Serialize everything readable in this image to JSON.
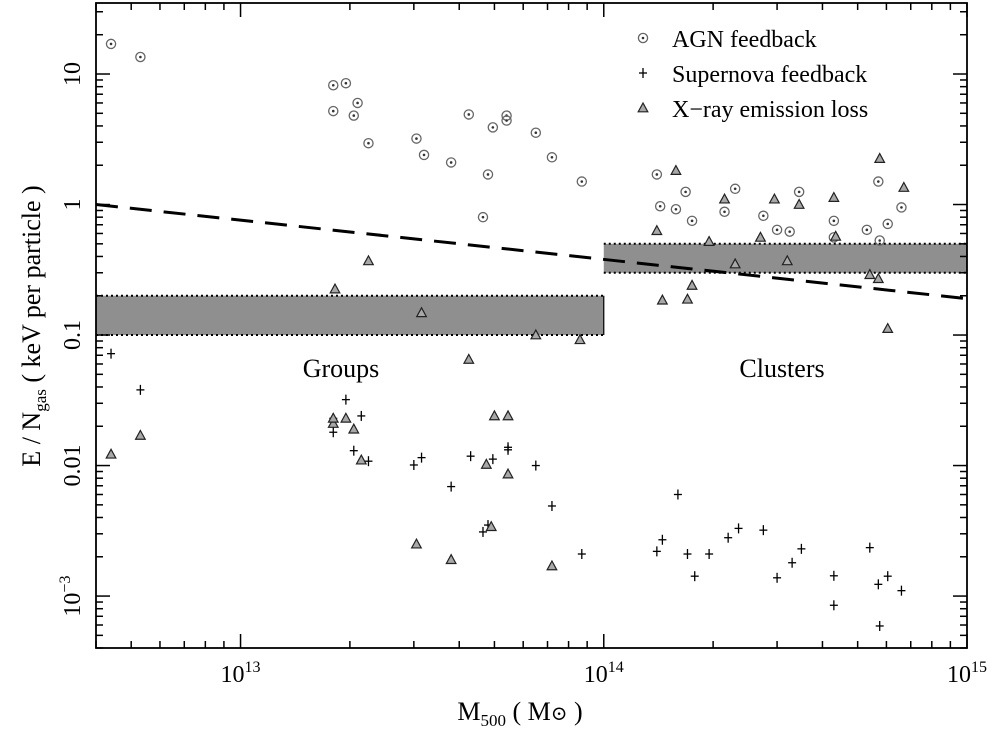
{
  "chart_data": {
    "type": "scatter",
    "x_axis": {
      "label_main": "M",
      "label_sub": "500",
      "label_unit_open": " ( M",
      "label_unit_symbol": "⊙",
      "label_unit_close": " )",
      "scale": "log",
      "range": [
        4000000000000.0,
        1000000000000000.0
      ],
      "ticks": [
        {
          "value": 10000000000000.0,
          "base": "10",
          "exp": "13"
        },
        {
          "value": 100000000000000.0,
          "base": "10",
          "exp": "14"
        },
        {
          "value": 1000000000000000.0,
          "base": "10",
          "exp": "15"
        }
      ]
    },
    "y_axis": {
      "label_main": "E / N",
      "label_sub": "gas",
      "label_unit": " ( keV per particle )",
      "scale": "log",
      "range": [
        0.0004,
        35
      ],
      "ticks": [
        {
          "value": 10,
          "text": "10"
        },
        {
          "value": 1,
          "text": "1"
        },
        {
          "value": 0.1,
          "text": "0.1"
        },
        {
          "value": 0.01,
          "text": "0.01"
        },
        {
          "value": 0.001,
          "text": "10",
          "exp": "−3"
        }
      ]
    },
    "legend": {
      "position": "top-right",
      "entries": [
        {
          "series": "agn",
          "label": "AGN feedback"
        },
        {
          "series": "sn",
          "label": "Supernova feedback"
        },
        {
          "series": "xray",
          "label": "X−ray emission loss"
        }
      ]
    },
    "regions": [
      {
        "label": "Groups",
        "x_range": [
          4000000000000.0,
          100000000000000.0
        ],
        "band": [
          0.1,
          0.2
        ],
        "label_y": 0.05
      },
      {
        "label": "Clusters",
        "x_range": [
          100000000000000.0,
          1000000000000000.0
        ],
        "band": [
          0.3,
          0.5
        ],
        "label_y": 0.05
      }
    ],
    "dashed_line": {
      "x": [
        4000000000000.0,
        1000000000000000.0
      ],
      "y": [
        1.0,
        0.19
      ]
    },
    "series": [
      {
        "key": "agn",
        "name": "AGN feedback",
        "marker": "circle-dot",
        "points": [
          [
            4400000000000.0,
            17
          ],
          [
            5300000000000.0,
            13.5
          ],
          [
            18000000000000.0,
            8.2
          ],
          [
            19500000000000.0,
            8.5
          ],
          [
            21000000000000.0,
            6.0
          ],
          [
            18000000000000.0,
            5.2
          ],
          [
            20500000000000.0,
            4.8
          ],
          [
            22500000000000.0,
            2.95
          ],
          [
            30500000000000.0,
            3.2
          ],
          [
            32000000000000.0,
            2.4
          ],
          [
            38000000000000.0,
            2.1
          ],
          [
            42500000000000.0,
            4.9
          ],
          [
            49500000000000.0,
            3.9
          ],
          [
            54000000000000.0,
            4.8
          ],
          [
            54000000000000.0,
            4.4
          ],
          [
            65000000000000.0,
            3.55
          ],
          [
            72000000000000.0,
            2.3
          ],
          [
            48000000000000.0,
            1.7
          ],
          [
            46500000000000.0,
            0.8
          ],
          [
            87000000000000.0,
            1.5
          ],
          [
            140000000000000.0,
            1.7
          ],
          [
            143000000000000.0,
            0.97
          ],
          [
            158000000000000.0,
            0.92
          ],
          [
            168000000000000.0,
            1.25
          ],
          [
            175000000000000.0,
            0.75
          ],
          [
            215000000000000.0,
            0.88
          ],
          [
            230000000000000.0,
            1.32
          ],
          [
            275000000000000.0,
            0.82
          ],
          [
            300000000000000.0,
            0.64
          ],
          [
            325000000000000.0,
            0.62
          ],
          [
            345000000000000.0,
            1.25
          ],
          [
            430000000000000.0,
            0.75
          ],
          [
            430000000000000.0,
            0.56
          ],
          [
            530000000000000.0,
            0.64
          ],
          [
            570000000000000.0,
            1.5
          ],
          [
            575000000000000.0,
            0.53
          ],
          [
            605000000000000.0,
            0.71
          ],
          [
            660000000000000.0,
            0.95
          ]
        ]
      },
      {
        "key": "sn",
        "name": "Supernova feedback",
        "marker": "plus",
        "points": [
          [
            4400000000000.0,
            0.072
          ],
          [
            5300000000000.0,
            0.038
          ],
          [
            18000000000000.0,
            0.023
          ],
          [
            18000000000000.0,
            0.018
          ],
          [
            19500000000000.0,
            0.032
          ],
          [
            20500000000000.0,
            0.013
          ],
          [
            21500000000000.0,
            0.024
          ],
          [
            22500000000000.0,
            0.0108
          ],
          [
            30000000000000.0,
            0.0101
          ],
          [
            31500000000000.0,
            0.0115
          ],
          [
            38000000000000.0,
            0.0069
          ],
          [
            43000000000000.0,
            0.0118
          ],
          [
            46500000000000.0,
            0.0031
          ],
          [
            48000000000000.0,
            0.0035
          ],
          [
            49500000000000.0,
            0.0112
          ],
          [
            54500000000000.0,
            0.0138
          ],
          [
            54500000000000.0,
            0.0132
          ],
          [
            65000000000000.0,
            0.01
          ],
          [
            72000000000000.0,
            0.0049
          ],
          [
            87000000000000.0,
            0.0021
          ],
          [
            140000000000000.0,
            0.0022
          ],
          [
            145000000000000.0,
            0.0027
          ],
          [
            160000000000000.0,
            0.006
          ],
          [
            170000000000000.0,
            0.0021
          ],
          [
            178000000000000.0,
            0.00142
          ],
          [
            195000000000000.0,
            0.0021
          ],
          [
            220000000000000.0,
            0.0028
          ],
          [
            235000000000000.0,
            0.0033
          ],
          [
            275000000000000.0,
            0.0032
          ],
          [
            300000000000000.0,
            0.00138
          ],
          [
            330000000000000.0,
            0.0018
          ],
          [
            350000000000000.0,
            0.0023
          ],
          [
            430000000000000.0,
            0.00143
          ],
          [
            430000000000000.0,
            0.00085
          ],
          [
            540000000000000.0,
            0.00235
          ],
          [
            570000000000000.0,
            0.00123
          ],
          [
            575000000000000.0,
            0.00059
          ],
          [
            605000000000000.0,
            0.00142
          ],
          [
            660000000000000.0,
            0.0011
          ]
        ]
      },
      {
        "key": "xray",
        "name": "X−ray emission loss",
        "marker": "triangle",
        "points": [
          [
            4400000000000.0,
            0.0122
          ],
          [
            5300000000000.0,
            0.017
          ],
          [
            18000000000000.0,
            0.021
          ],
          [
            18000000000000.0,
            0.023
          ],
          [
            19500000000000.0,
            0.023
          ],
          [
            20500000000000.0,
            0.019
          ],
          [
            21500000000000.0,
            0.011
          ],
          [
            18200000000000.0,
            0.225
          ],
          [
            22500000000000.0,
            0.37
          ],
          [
            30500000000000.0,
            0.0025
          ],
          [
            31500000000000.0,
            0.148
          ],
          [
            38000000000000.0,
            0.0019
          ],
          [
            42500000000000.0,
            0.065
          ],
          [
            47500000000000.0,
            0.0102
          ],
          [
            49000000000000.0,
            0.0034
          ],
          [
            50000000000000.0,
            0.024
          ],
          [
            54500000000000.0,
            0.024
          ],
          [
            54500000000000.0,
            0.0086
          ],
          [
            65000000000000.0,
            0.1
          ],
          [
            72000000000000.0,
            0.0017
          ],
          [
            86000000000000.0,
            0.092
          ],
          [
            140000000000000.0,
            0.63
          ],
          [
            145000000000000.0,
            0.185
          ],
          [
            158000000000000.0,
            1.82
          ],
          [
            170000000000000.0,
            0.188
          ],
          [
            175000000000000.0,
            0.24
          ],
          [
            195000000000000.0,
            0.52
          ],
          [
            215000000000000.0,
            1.1
          ],
          [
            230000000000000.0,
            0.35
          ],
          [
            270000000000000.0,
            0.56
          ],
          [
            295000000000000.0,
            1.1
          ],
          [
            320000000000000.0,
            0.37
          ],
          [
            345000000000000.0,
            1.0
          ],
          [
            430000000000000.0,
            1.13
          ],
          [
            435000000000000.0,
            0.57
          ],
          [
            540000000000000.0,
            0.29
          ],
          [
            570000000000000.0,
            0.27
          ],
          [
            575000000000000.0,
            2.25
          ],
          [
            605000000000000.0,
            0.112
          ],
          [
            670000000000000.0,
            1.35
          ]
        ]
      }
    ]
  }
}
